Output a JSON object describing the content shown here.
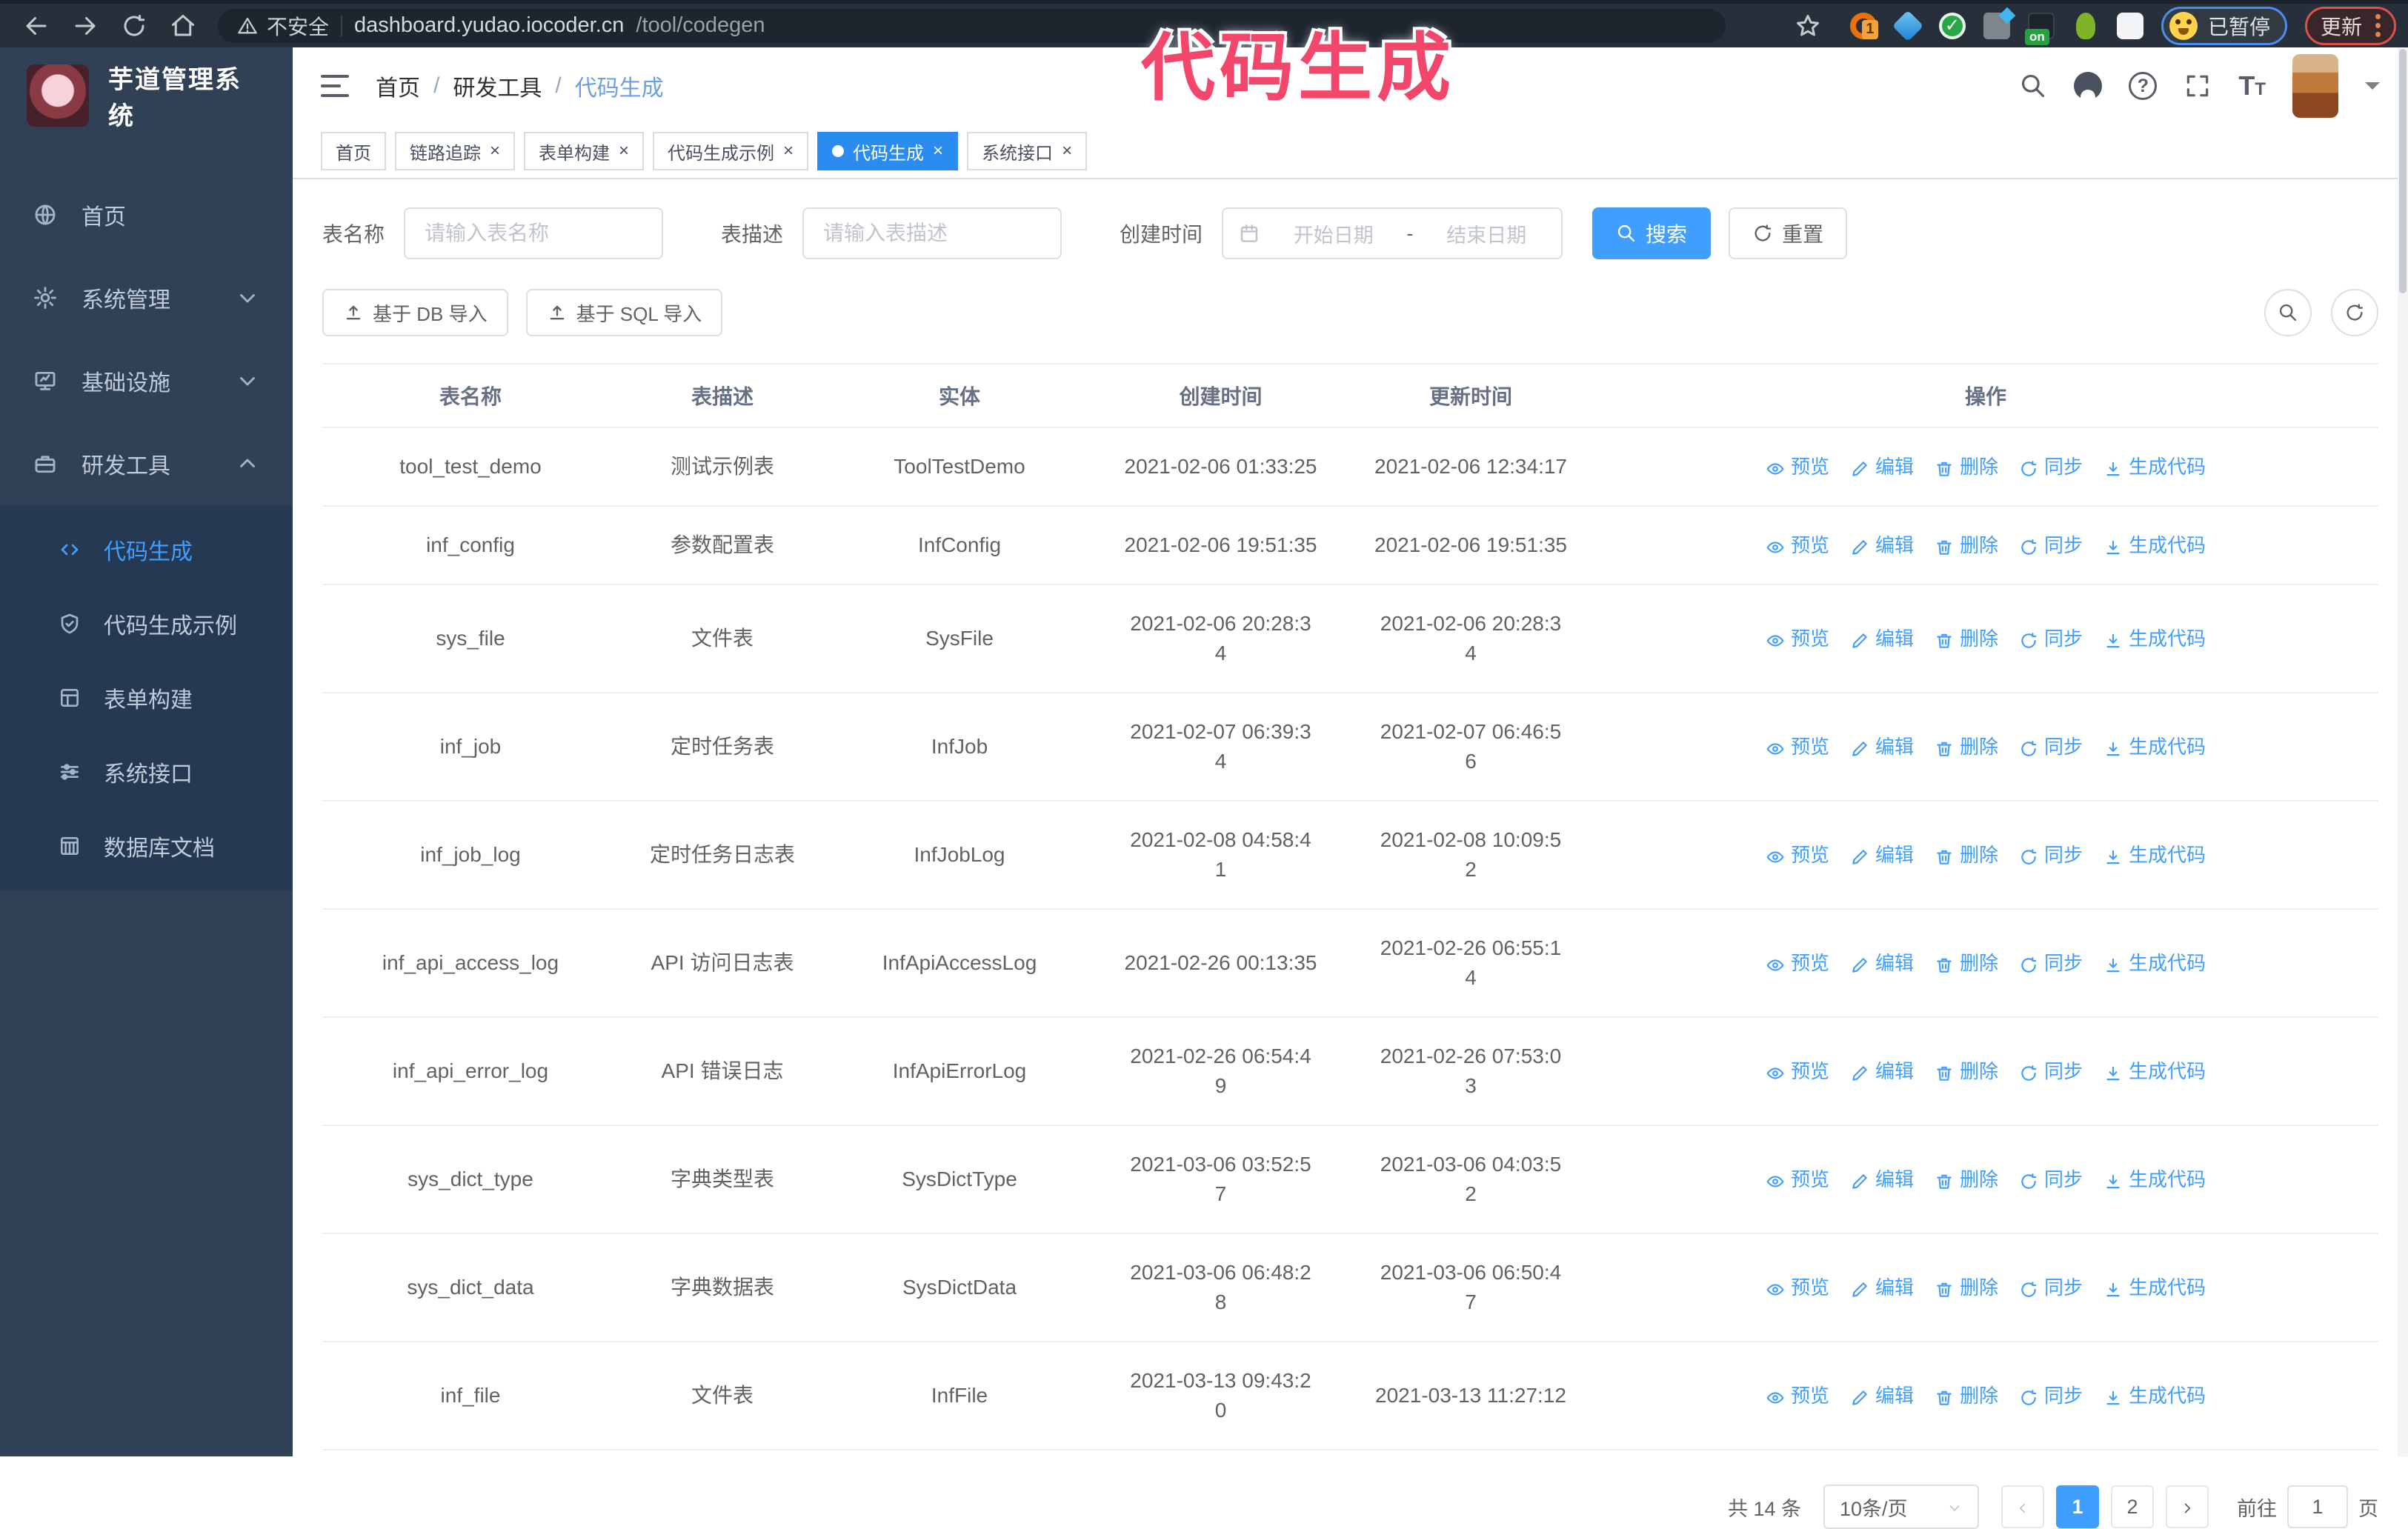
{
  "colors": {
    "accent": "#409eff",
    "annotation": "#f2466b",
    "sidebar_bg": "#304156"
  },
  "annotation": {
    "text": "代码生成"
  },
  "browser": {
    "security_label": "不安全",
    "url_host": "dashboard.yudao.iocoder.cn",
    "url_path": "/tool/codegen",
    "paused_label": "已暂停",
    "update_label": "更新",
    "extension_badge": "1",
    "extension_on_badge": "on"
  },
  "sidebar": {
    "title": "芋道管理系统",
    "items": [
      {
        "label": "首页",
        "icon": "home-globe-icon",
        "expandable": false,
        "expanded": false
      },
      {
        "label": "系统管理",
        "icon": "gear-icon",
        "expandable": true,
        "expanded": false
      },
      {
        "label": "基础设施",
        "icon": "monitor-icon",
        "expandable": true,
        "expanded": false
      },
      {
        "label": "研发工具",
        "icon": "toolbox-icon",
        "expandable": true,
        "expanded": true
      }
    ],
    "subitems": [
      {
        "label": "代码生成",
        "icon": "code-icon",
        "active": true
      },
      {
        "label": "代码生成示例",
        "icon": "shield-check-icon",
        "active": false
      },
      {
        "label": "表单构建",
        "icon": "form-icon",
        "active": false
      },
      {
        "label": "系统接口",
        "icon": "sliders-icon",
        "active": false
      },
      {
        "label": "数据库文档",
        "icon": "database-doc-icon",
        "active": false
      }
    ]
  },
  "header": {
    "breadcrumb": [
      "首页",
      "研发工具",
      "代码生成"
    ]
  },
  "tabs": [
    {
      "label": "首页",
      "closable": false,
      "active": false
    },
    {
      "label": "链路追踪",
      "closable": true,
      "active": false
    },
    {
      "label": "表单构建",
      "closable": true,
      "active": false
    },
    {
      "label": "代码生成示例",
      "closable": true,
      "active": false
    },
    {
      "label": "代码生成",
      "closable": true,
      "active": true
    },
    {
      "label": "系统接口",
      "closable": true,
      "active": false
    }
  ],
  "filters": {
    "name_label": "表名称",
    "name_placeholder": "请输入表名称",
    "desc_label": "表描述",
    "desc_placeholder": "请输入表描述",
    "time_label": "创建时间",
    "start_placeholder": "开始日期",
    "range_separator": "-",
    "end_placeholder": "结束日期",
    "search_label": "搜索",
    "reset_label": "重置"
  },
  "toolbar": {
    "import_db": "基于 DB 导入",
    "import_sql": "基于 SQL 导入"
  },
  "table": {
    "columns": [
      "表名称",
      "表描述",
      "实体",
      "创建时间",
      "更新时间",
      "操作"
    ],
    "actions": [
      {
        "label": "预览",
        "icon": "eye-icon",
        "name": "preview-link"
      },
      {
        "label": "编辑",
        "icon": "edit-icon",
        "name": "edit-link"
      },
      {
        "label": "删除",
        "icon": "delete-icon",
        "name": "delete-link"
      },
      {
        "label": "同步",
        "icon": "sync-icon",
        "name": "sync-link"
      },
      {
        "label": "生成代码",
        "icon": "download-icon",
        "name": "generate-code-link"
      }
    ],
    "rows": [
      {
        "name": "tool_test_demo",
        "desc": "测试示例表",
        "entity": "ToolTestDemo",
        "created": "2021-02-06 01:33:25",
        "updated": "2021-02-06 12:34:17"
      },
      {
        "name": "inf_config",
        "desc": "参数配置表",
        "entity": "InfConfig",
        "created": "2021-02-06 19:51:35",
        "updated": "2021-02-06 19:51:35"
      },
      {
        "name": "sys_file",
        "desc": "文件表",
        "entity": "SysFile",
        "created": "2021-02-06 20:28:3\n4",
        "updated": "2021-02-06 20:28:3\n4"
      },
      {
        "name": "inf_job",
        "desc": "定时任务表",
        "entity": "InfJob",
        "created": "2021-02-07 06:39:3\n4",
        "updated": "2021-02-07 06:46:5\n6"
      },
      {
        "name": "inf_job_log",
        "desc": "定时任务日志表",
        "entity": "InfJobLog",
        "created": "2021-02-08 04:58:4\n1",
        "updated": "2021-02-08 10:09:5\n2"
      },
      {
        "name": "inf_api_access_log",
        "desc": "API 访问日志表",
        "entity": "InfApiAccessLog",
        "created": "2021-02-26 00:13:35",
        "updated": "2021-02-26 06:55:1\n4"
      },
      {
        "name": "inf_api_error_log",
        "desc": "API 错误日志",
        "entity": "InfApiErrorLog",
        "created": "2021-02-26 06:54:4\n9",
        "updated": "2021-02-26 07:53:0\n3"
      },
      {
        "name": "sys_dict_type",
        "desc": "字典类型表",
        "entity": "SysDictType",
        "created": "2021-03-06 03:52:5\n7",
        "updated": "2021-03-06 04:03:5\n2"
      },
      {
        "name": "sys_dict_data",
        "desc": "字典数据表",
        "entity": "SysDictData",
        "created": "2021-03-06 06:48:2\n8",
        "updated": "2021-03-06 06:50:4\n7"
      },
      {
        "name": "inf_file",
        "desc": "文件表",
        "entity": "InfFile",
        "created": "2021-03-13 09:43:2\n0",
        "updated": "2021-03-13 11:27:12"
      }
    ]
  },
  "pagination": {
    "total": "共 14 条",
    "page_size": "10条/页",
    "pages": [
      "1",
      "2"
    ],
    "active_page": "1",
    "goto_label": "前往",
    "goto_value": "1",
    "page_suffix": "页"
  }
}
